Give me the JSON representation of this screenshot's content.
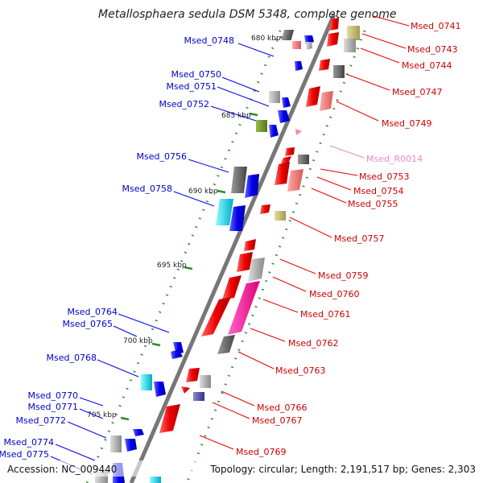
{
  "title": "Metallosphaera sedula DSM 5348, complete genome",
  "accession": "Accession: NC_009440",
  "topology": "Topology: circular; Length: 2,191,517 bp; Genes: 2,303",
  "kbp_labels": [
    "680 kbp",
    "685 kbp",
    "690 kbp",
    "695 kbp",
    "700 kbp",
    "705 kbp"
  ],
  "left_genes": [
    "Msed_0748",
    "Msed_0750",
    "Msed_0751",
    "Msed_0752",
    "Msed_0756",
    "Msed_0758",
    "Msed_0764",
    "Msed_0765",
    "Msed_0768",
    "Msed_0770",
    "Msed_0771",
    "Msed_0772",
    "Msed_0774",
    "Msed_0775"
  ],
  "right_genes": [
    "Msed_0741",
    "Msed_0743",
    "Msed_0744",
    "Msed_0747",
    "Msed_0749",
    "Msed_R0014",
    "Msed_0753",
    "Msed_0754",
    "Msed_0755",
    "Msed_0757",
    "Msed_0759",
    "Msed_0760",
    "Msed_0761",
    "Msed_0762",
    "Msed_0763",
    "Msed_0766",
    "Msed_0767",
    "Msed_0769"
  ],
  "colors": {
    "forward": "#0000ee",
    "reverse": "#ee0000",
    "rna": "#ee88bb",
    "backbone": "#888888",
    "tick": "#2e8b2e"
  }
}
